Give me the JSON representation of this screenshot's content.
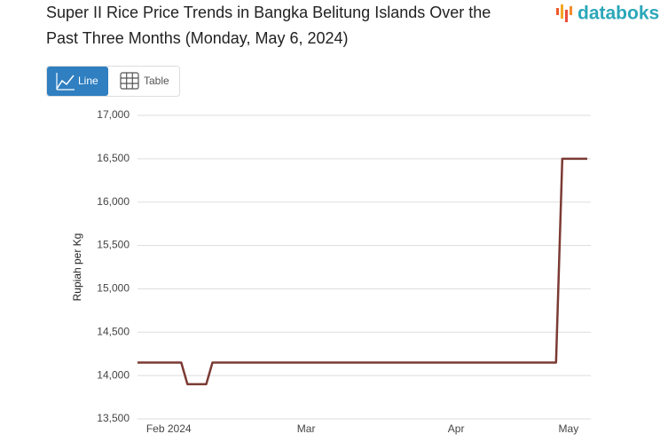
{
  "chart_data": {
    "type": "line",
    "title": "Super II Rice Price Trends in Bangka Belitung Islands Over the Past Three Months (Monday, May 6, 2024)",
    "y_label": "Rupiah per Kg",
    "categories": [
      null,
      null,
      null,
      null,
      null,
      "Feb 2024",
      null,
      null,
      null,
      null,
      null,
      null,
      null,
      null,
      null,
      null,
      null,
      null,
      null,
      null,
      null,
      null,
      null,
      null,
      null,
      null,
      null,
      "Mar",
      null,
      null,
      null,
      null,
      null,
      null,
      null,
      null,
      null,
      null,
      null,
      null,
      null,
      null,
      null,
      null,
      null,
      null,
      null,
      null,
      null,
      null,
      null,
      "Apr",
      null,
      null,
      null,
      null,
      null,
      null,
      null,
      null,
      null,
      null,
      null,
      null,
      null,
      null,
      null,
      null,
      null,
      "May",
      null,
      null,
      null
    ],
    "values": [
      14150,
      14150,
      14150,
      14150,
      14150,
      14150,
      14150,
      14150,
      13900,
      13900,
      13900,
      13900,
      14150,
      14150,
      14150,
      14150,
      14150,
      14150,
      14150,
      14150,
      14150,
      14150,
      14150,
      14150,
      14150,
      14150,
      14150,
      14150,
      14150,
      14150,
      14150,
      14150,
      14150,
      14150,
      14150,
      14150,
      14150,
      14150,
      14150,
      14150,
      14150,
      14150,
      14150,
      14150,
      14150,
      14150,
      14150,
      14150,
      14150,
      14150,
      14150,
      14150,
      14150,
      14150,
      14150,
      14150,
      14150,
      14150,
      14150,
      14150,
      14150,
      14150,
      14150,
      14150,
      14150,
      14150,
      14150,
      14150,
      16500,
      16500,
      16500,
      16500,
      16500
    ],
    "color": "#7b3a33",
    "ylim": [
      13500,
      17000
    ],
    "yticks": [
      {
        "value": 13500,
        "label": "13,500"
      },
      {
        "value": 14000,
        "label": "14,000"
      },
      {
        "value": 14500,
        "label": "14,500"
      },
      {
        "value": 15000,
        "label": "15,000"
      },
      {
        "value": 15500,
        "label": "15,500"
      },
      {
        "value": 16000,
        "label": "16,000"
      },
      {
        "value": 16500,
        "label": "16,500"
      },
      {
        "value": 17000,
        "label": "17,000"
      }
    ],
    "grid": true
  },
  "ui": {
    "logo": "databoks",
    "buttons": [
      "Line",
      "Table"
    ]
  }
}
